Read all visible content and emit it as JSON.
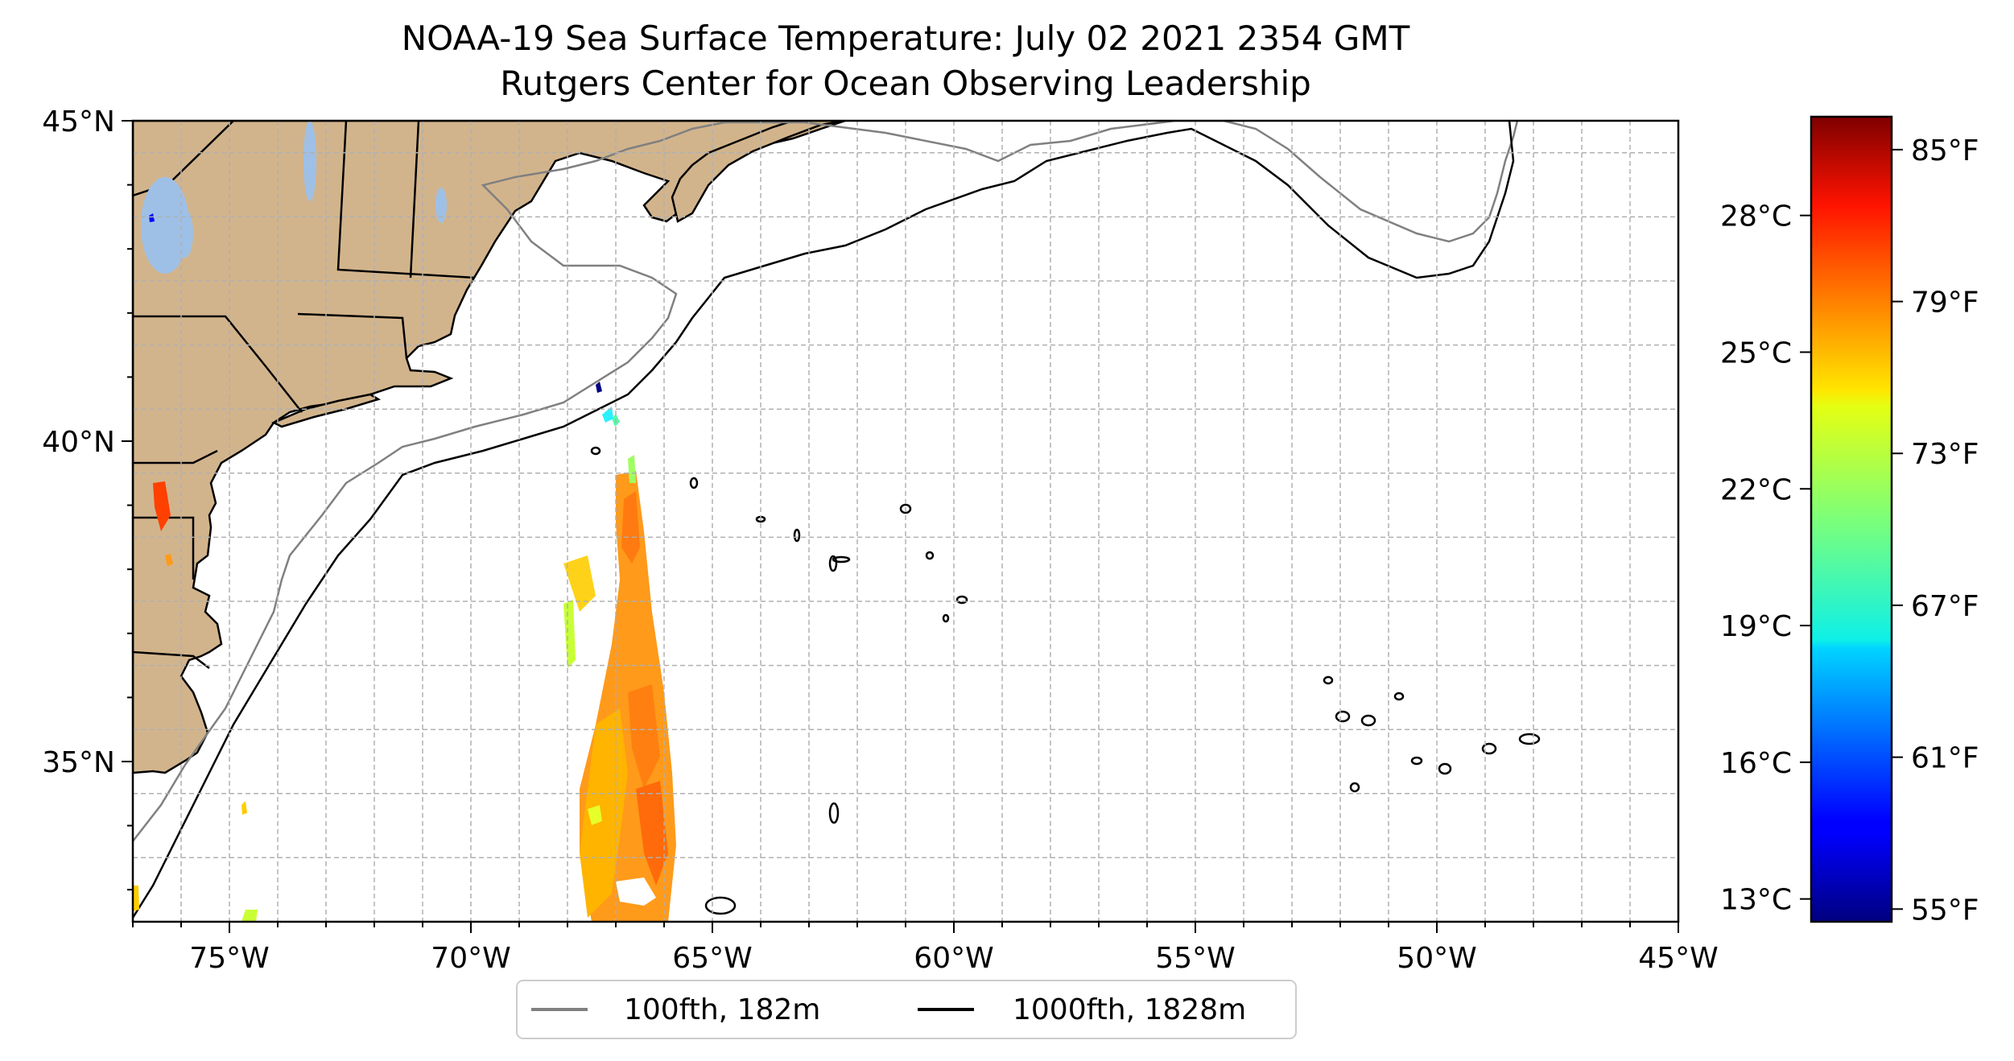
{
  "title": "NOAA-19 Sea Surface Temperature: July 02 2021 2354 GMT",
  "subtitle": "Rutgers Center for Ocean Observing Leadership",
  "map": {
    "lon_range": [
      -77,
      -45
    ],
    "lat_range": [
      32.5,
      45
    ],
    "lon_ticks": [
      {
        "value": -75,
        "label": "75°W"
      },
      {
        "value": -70,
        "label": "70°W"
      },
      {
        "value": -65,
        "label": "65°W"
      },
      {
        "value": -60,
        "label": "60°W"
      },
      {
        "value": -55,
        "label": "55°W"
      },
      {
        "value": -50,
        "label": "50°W"
      },
      {
        "value": -45,
        "label": "45°W"
      }
    ],
    "lat_ticks": [
      {
        "value": 45,
        "label": "45°N"
      },
      {
        "value": 40,
        "label": "40°N"
      },
      {
        "value": 35,
        "label": "35°N"
      }
    ],
    "grid": true,
    "land_color": "#d2b48c",
    "lake_color": "#9fc0e6"
  },
  "colorbar": {
    "colormap": "jet",
    "range_f": [
      54.5,
      86.3
    ],
    "celsius_ticks": [
      {
        "value": 13,
        "label": "13°C"
      },
      {
        "value": 16,
        "label": "16°C"
      },
      {
        "value": 19,
        "label": "19°C"
      },
      {
        "value": 22,
        "label": "22°C"
      },
      {
        "value": 25,
        "label": "25°C"
      },
      {
        "value": 28,
        "label": "28°C"
      }
    ],
    "fahrenheit_ticks": [
      {
        "value": 55,
        "label": "55°F"
      },
      {
        "value": 61,
        "label": "61°F"
      },
      {
        "value": 67,
        "label": "67°F"
      },
      {
        "value": 73,
        "label": "73°F"
      },
      {
        "value": 79,
        "label": "79°F"
      },
      {
        "value": 85,
        "label": "85°F"
      }
    ]
  },
  "legend": {
    "items": [
      {
        "label": "100fth, 182m",
        "color": "#808080"
      },
      {
        "label": "1000fth, 1828m",
        "color": "#000000"
      }
    ]
  }
}
